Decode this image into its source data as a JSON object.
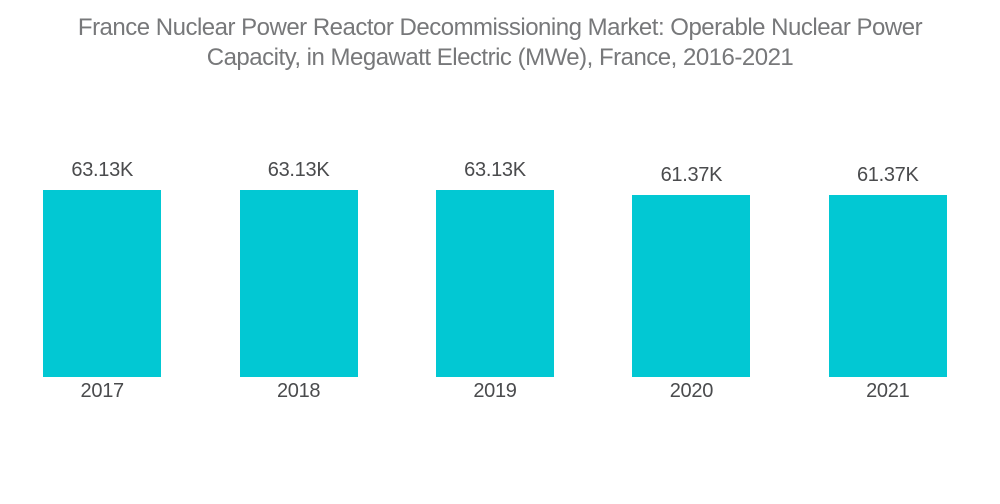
{
  "header": {
    "title_lines": [
      "France Nuclear Power Reactor Decommissioning Market: Operable Nuclear Power",
      "Capacity, in Megawatt Electric (MWe), France, 2016-2021"
    ]
  },
  "chart_data": {
    "type": "bar",
    "title": "France Nuclear Power Reactor Decommissioning Market: Operable Nuclear Power Capacity, in Megawatt Electric (MWe), France, 2016-2021",
    "unit": "MWe",
    "categories": [
      "2017",
      "2018",
      "2019",
      "2020",
      "2021"
    ],
    "values": [
      63130,
      63130,
      63130,
      61370,
      61370
    ],
    "value_labels": [
      "63.13K",
      "63.13K",
      "63.13K",
      "61.37K",
      "61.37K"
    ],
    "ylim": [
      0,
      63130
    ],
    "grid": false,
    "legend": false,
    "axes_visible": false,
    "bar_color": "#02C8D3"
  },
  "colors": {
    "accent": "#02C8D3",
    "title": "#77787A",
    "label": "#4A4B4D",
    "background": "#FFFFFF"
  }
}
